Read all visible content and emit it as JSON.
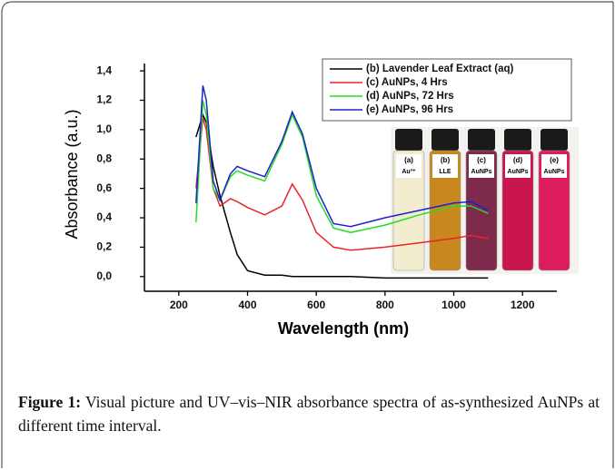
{
  "chart_data": {
    "type": "line",
    "x_label": "Wavelength (nm)",
    "y_label": "Absorbance (a.u.)",
    "x": [
      250,
      270,
      280,
      300,
      320,
      350,
      370,
      400,
      450,
      500,
      530,
      560,
      600,
      650,
      700,
      800,
      900,
      1000,
      1050,
      1100
    ],
    "series": [
      {
        "name": "(b) Lavender Leaf Extract (aq)",
        "color": "#000000",
        "values": [
          0.95,
          1.1,
          1.05,
          0.75,
          0.55,
          0.3,
          0.15,
          0.04,
          0.01,
          0.01,
          0.0,
          0.0,
          0.0,
          0.0,
          0.0,
          -0.01,
          -0.01,
          -0.01,
          -0.01,
          -0.01
        ]
      },
      {
        "name": "(c) AuNPs, 4 Hrs",
        "color": "#e8262a",
        "values": [
          0.6,
          1.08,
          1.0,
          0.6,
          0.48,
          0.53,
          0.51,
          0.47,
          0.42,
          0.48,
          0.63,
          0.52,
          0.3,
          0.2,
          0.18,
          0.2,
          0.23,
          0.26,
          0.28,
          0.26
        ]
      },
      {
        "name": "(d) AuNPs, 72 Hrs",
        "color": "#22dd22",
        "values": [
          0.37,
          1.2,
          1.1,
          0.6,
          0.52,
          0.68,
          0.72,
          0.69,
          0.65,
          0.9,
          1.1,
          0.95,
          0.55,
          0.33,
          0.3,
          0.35,
          0.42,
          0.48,
          0.48,
          0.43
        ]
      },
      {
        "name": "(e) AuNPs, 96 Hrs",
        "color": "#2020cc",
        "values": [
          0.5,
          1.3,
          1.2,
          0.65,
          0.52,
          0.7,
          0.75,
          0.72,
          0.68,
          0.92,
          1.12,
          0.97,
          0.6,
          0.36,
          0.34,
          0.4,
          0.45,
          0.5,
          0.51,
          0.45
        ]
      }
    ],
    "xlim": [
      100,
      1300
    ],
    "ylim": [
      -0.1,
      1.45
    ],
    "xticks": [
      200,
      400,
      600,
      800,
      1000,
      1200
    ],
    "yticks": [
      {
        "value": 0,
        "label": "0,0"
      },
      {
        "value": 0.2,
        "label": "0,2"
      },
      {
        "value": 0.4,
        "label": "0,4"
      },
      {
        "value": 0.6,
        "label": "0,6"
      },
      {
        "value": 0.8,
        "label": "0,8"
      },
      {
        "value": 1.0,
        "label": "1,0"
      },
      {
        "value": 1.2,
        "label": "1,2"
      },
      {
        "value": 1.4,
        "label": "1,4"
      }
    ],
    "legend": "upper right"
  },
  "vials": [
    {
      "letter": "(a)",
      "label": "Au³⁺"
    },
    {
      "letter": "(b)",
      "label": "LLE"
    },
    {
      "letter": "(c)",
      "label": "AuNPs"
    },
    {
      "letter": "(d)",
      "label": "AuNPs"
    },
    {
      "letter": "(e)",
      "label": "AuNPs"
    }
  ],
  "caption": {
    "label": "Figure 1:",
    "text": "Visual picture and UV–vis–NIR absorbance spectra of as-synthesized AuNPs at different time interval."
  }
}
